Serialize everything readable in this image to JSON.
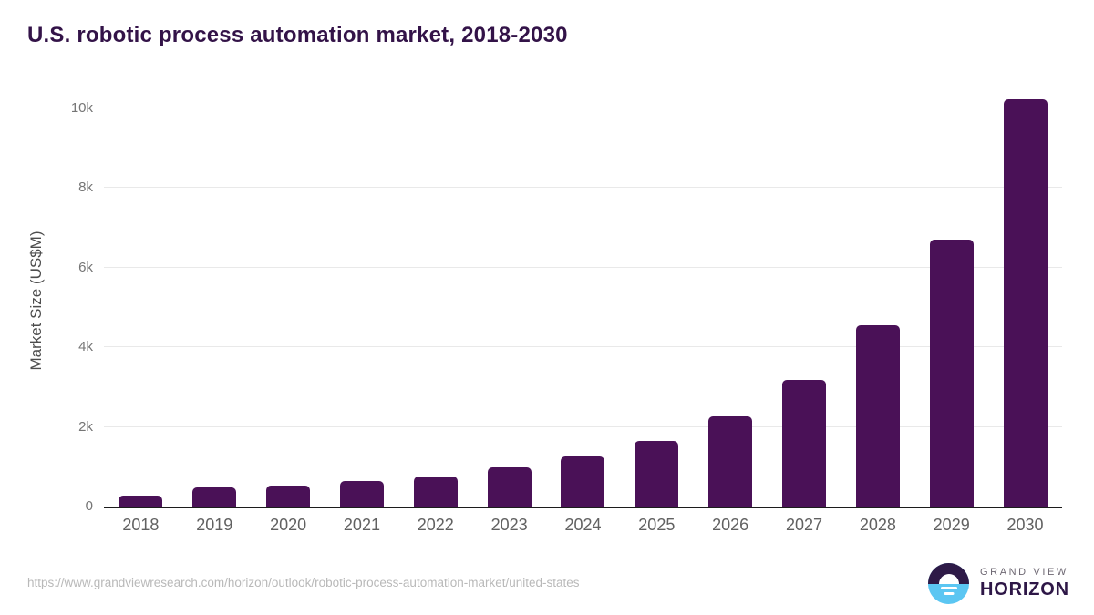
{
  "page": {
    "title": "U.S. robotic process automation market, 2018-2030",
    "source_url": "https://www.grandviewresearch.com/horizon/outlook/robotic-process-automation-market/united-states"
  },
  "logo": {
    "brand_top": "GRAND VIEW",
    "brand_bottom": "HORIZON"
  },
  "colors": {
    "bar": "#4a1157",
    "title_text": "#331348",
    "axis_line": "#1c1c1c",
    "gridline": "#e9e9e9",
    "y_tick_text": "#757575",
    "x_tick_text": "#616161",
    "source_text": "#b9b9b9",
    "logo_dark": "#2e1a47",
    "logo_blue": "#5bc6f2"
  },
  "chart_data": {
    "type": "bar",
    "title": "U.S. robotic process automation market, 2018-2030",
    "categories": [
      "2018",
      "2019",
      "2020",
      "2021",
      "2022",
      "2023",
      "2024",
      "2025",
      "2026",
      "2027",
      "2028",
      "2029",
      "2030"
    ],
    "values": [
      280,
      475,
      520,
      650,
      760,
      975,
      1270,
      1655,
      2260,
      3175,
      4550,
      6700,
      10225
    ],
    "xlabel": "",
    "ylabel": "Market Size (US$M)",
    "ylim": [
      0,
      10480
    ],
    "yticks": [
      {
        "value": 0,
        "label": "0"
      },
      {
        "value": 2000,
        "label": "2k"
      },
      {
        "value": 4000,
        "label": "4k"
      },
      {
        "value": 6000,
        "label": "6k"
      },
      {
        "value": 8000,
        "label": "8k"
      },
      {
        "value": 10000,
        "label": "10k"
      }
    ],
    "grid": true,
    "legend": false,
    "bar_color": "#4a1157"
  }
}
